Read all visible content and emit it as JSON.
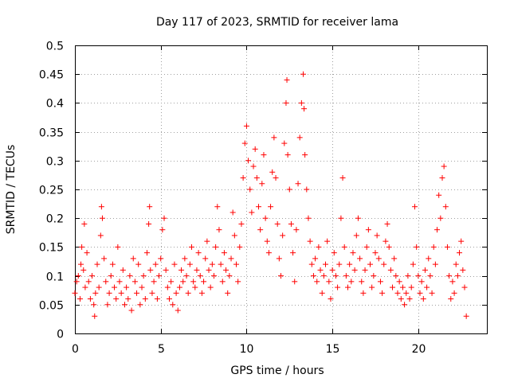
{
  "chart_data": {
    "type": "scatter",
    "title": "Day 117 of 2023, SRMTID for receiver lama",
    "xlabel": "GPS time / hours",
    "ylabel": "SRMTID / TECUs",
    "xlim": [
      0,
      24
    ],
    "ylim": [
      0,
      0.5
    ],
    "x_ticks": [
      0,
      5,
      10,
      15,
      20
    ],
    "x_tick_labels": [
      "0",
      "5",
      "10",
      "15",
      "20"
    ],
    "y_ticks": [
      0,
      0.05,
      0.1,
      0.15,
      0.2,
      0.25,
      0.3,
      0.35,
      0.4,
      0.45,
      0.5
    ],
    "y_tick_labels": [
      "0",
      "0.05",
      "0.1",
      "0.15",
      "0.2",
      "0.25",
      "0.3",
      "0.35",
      "0.4",
      "0.45",
      "0.5"
    ],
    "grid": true,
    "marker": "+",
    "color": "#ff0000",
    "series": [
      {
        "name": "SRMTID",
        "points": [
          [
            0.0,
            0.07
          ],
          [
            0.1,
            0.09
          ],
          [
            0.2,
            0.1
          ],
          [
            0.3,
            0.06
          ],
          [
            0.35,
            0.12
          ],
          [
            0.4,
            0.15
          ],
          [
            0.5,
            0.11
          ],
          [
            0.55,
            0.19
          ],
          [
            0.6,
            0.08
          ],
          [
            0.7,
            0.14
          ],
          [
            0.8,
            0.09
          ],
          [
            0.9,
            0.06
          ],
          [
            1.0,
            0.1
          ],
          [
            1.1,
            0.05
          ],
          [
            1.15,
            0.03
          ],
          [
            1.2,
            0.07
          ],
          [
            1.3,
            0.12
          ],
          [
            1.4,
            0.08
          ],
          [
            1.5,
            0.17
          ],
          [
            1.55,
            0.22
          ],
          [
            1.6,
            0.2
          ],
          [
            1.7,
            0.13
          ],
          [
            1.8,
            0.09
          ],
          [
            1.9,
            0.05
          ],
          [
            2.0,
            0.07
          ],
          [
            2.1,
            0.1
          ],
          [
            2.2,
            0.12
          ],
          [
            2.3,
            0.08
          ],
          [
            2.4,
            0.06
          ],
          [
            2.5,
            0.15
          ],
          [
            2.6,
            0.09
          ],
          [
            2.7,
            0.07
          ],
          [
            2.8,
            0.11
          ],
          [
            2.9,
            0.05
          ],
          [
            3.0,
            0.08
          ],
          [
            3.1,
            0.06
          ],
          [
            3.2,
            0.1
          ],
          [
            3.3,
            0.04
          ],
          [
            3.4,
            0.13
          ],
          [
            3.5,
            0.09
          ],
          [
            3.6,
            0.07
          ],
          [
            3.7,
            0.12
          ],
          [
            3.8,
            0.05
          ],
          [
            3.9,
            0.08
          ],
          [
            4.0,
            0.1
          ],
          [
            4.1,
            0.06
          ],
          [
            4.2,
            0.14
          ],
          [
            4.3,
            0.19
          ],
          [
            4.35,
            0.22
          ],
          [
            4.4,
            0.11
          ],
          [
            4.5,
            0.07
          ],
          [
            4.6,
            0.09
          ],
          [
            4.7,
            0.12
          ],
          [
            4.8,
            0.06
          ],
          [
            4.9,
            0.1
          ],
          [
            5.0,
            0.13
          ],
          [
            5.1,
            0.18
          ],
          [
            5.2,
            0.2
          ],
          [
            5.3,
            0.11
          ],
          [
            5.4,
            0.08
          ],
          [
            5.5,
            0.06
          ],
          [
            5.6,
            0.09
          ],
          [
            5.7,
            0.05
          ],
          [
            5.8,
            0.12
          ],
          [
            5.9,
            0.07
          ],
          [
            6.0,
            0.04
          ],
          [
            6.1,
            0.08
          ],
          [
            6.2,
            0.11
          ],
          [
            6.3,
            0.09
          ],
          [
            6.4,
            0.13
          ],
          [
            6.5,
            0.1
          ],
          [
            6.6,
            0.07
          ],
          [
            6.7,
            0.12
          ],
          [
            6.8,
            0.15
          ],
          [
            6.9,
            0.09
          ],
          [
            7.0,
            0.08
          ],
          [
            7.1,
            0.11
          ],
          [
            7.2,
            0.14
          ],
          [
            7.3,
            0.1
          ],
          [
            7.4,
            0.07
          ],
          [
            7.5,
            0.09
          ],
          [
            7.6,
            0.13
          ],
          [
            7.7,
            0.16
          ],
          [
            7.8,
            0.11
          ],
          [
            7.9,
            0.08
          ],
          [
            8.0,
            0.12
          ],
          [
            8.1,
            0.1
          ],
          [
            8.2,
            0.15
          ],
          [
            8.3,
            0.22
          ],
          [
            8.4,
            0.18
          ],
          [
            8.5,
            0.12
          ],
          [
            8.6,
            0.09
          ],
          [
            8.7,
            0.14
          ],
          [
            8.8,
            0.11
          ],
          [
            8.9,
            0.07
          ],
          [
            9.0,
            0.1
          ],
          [
            9.1,
            0.13
          ],
          [
            9.2,
            0.21
          ],
          [
            9.3,
            0.17
          ],
          [
            9.4,
            0.12
          ],
          [
            9.5,
            0.09
          ],
          [
            9.6,
            0.15
          ],
          [
            9.7,
            0.19
          ],
          [
            9.8,
            0.27
          ],
          [
            9.9,
            0.33
          ],
          [
            10.0,
            0.36
          ],
          [
            10.1,
            0.3
          ],
          [
            10.2,
            0.25
          ],
          [
            10.3,
            0.21
          ],
          [
            10.4,
            0.29
          ],
          [
            10.5,
            0.32
          ],
          [
            10.6,
            0.27
          ],
          [
            10.7,
            0.22
          ],
          [
            10.8,
            0.18
          ],
          [
            10.9,
            0.26
          ],
          [
            11.0,
            0.31
          ],
          [
            11.1,
            0.2
          ],
          [
            11.2,
            0.16
          ],
          [
            11.3,
            0.14
          ],
          [
            11.4,
            0.22
          ],
          [
            11.5,
            0.28
          ],
          [
            11.6,
            0.34
          ],
          [
            11.7,
            0.27
          ],
          [
            11.8,
            0.19
          ],
          [
            11.9,
            0.13
          ],
          [
            12.0,
            0.1
          ],
          [
            12.1,
            0.17
          ],
          [
            12.2,
            0.33
          ],
          [
            12.3,
            0.4
          ],
          [
            12.35,
            0.44
          ],
          [
            12.4,
            0.31
          ],
          [
            12.5,
            0.25
          ],
          [
            12.6,
            0.19
          ],
          [
            12.7,
            0.14
          ],
          [
            12.8,
            0.09
          ],
          [
            12.9,
            0.18
          ],
          [
            13.0,
            0.26
          ],
          [
            13.1,
            0.34
          ],
          [
            13.2,
            0.4
          ],
          [
            13.3,
            0.45
          ],
          [
            13.35,
            0.39
          ],
          [
            13.4,
            0.31
          ],
          [
            13.5,
            0.25
          ],
          [
            13.6,
            0.2
          ],
          [
            13.7,
            0.16
          ],
          [
            13.8,
            0.12
          ],
          [
            13.9,
            0.1
          ],
          [
            14.0,
            0.13
          ],
          [
            14.1,
            0.09
          ],
          [
            14.2,
            0.15
          ],
          [
            14.3,
            0.11
          ],
          [
            14.4,
            0.07
          ],
          [
            14.5,
            0.1
          ],
          [
            14.6,
            0.12
          ],
          [
            14.7,
            0.16
          ],
          [
            14.8,
            0.09
          ],
          [
            14.9,
            0.06
          ],
          [
            15.0,
            0.11
          ],
          [
            15.1,
            0.14
          ],
          [
            15.2,
            0.1
          ],
          [
            15.3,
            0.08
          ],
          [
            15.4,
            0.12
          ],
          [
            15.5,
            0.2
          ],
          [
            15.6,
            0.27
          ],
          [
            15.7,
            0.15
          ],
          [
            15.8,
            0.1
          ],
          [
            15.9,
            0.08
          ],
          [
            16.0,
            0.12
          ],
          [
            16.1,
            0.09
          ],
          [
            16.2,
            0.14
          ],
          [
            16.3,
            0.11
          ],
          [
            16.4,
            0.17
          ],
          [
            16.5,
            0.2
          ],
          [
            16.6,
            0.13
          ],
          [
            16.7,
            0.09
          ],
          [
            16.8,
            0.07
          ],
          [
            16.9,
            0.11
          ],
          [
            17.0,
            0.15
          ],
          [
            17.1,
            0.18
          ],
          [
            17.2,
            0.12
          ],
          [
            17.3,
            0.08
          ],
          [
            17.4,
            0.1
          ],
          [
            17.5,
            0.14
          ],
          [
            17.6,
            0.17
          ],
          [
            17.7,
            0.13
          ],
          [
            17.8,
            0.09
          ],
          [
            17.9,
            0.07
          ],
          [
            18.0,
            0.12
          ],
          [
            18.1,
            0.16
          ],
          [
            18.2,
            0.19
          ],
          [
            18.3,
            0.15
          ],
          [
            18.4,
            0.11
          ],
          [
            18.5,
            0.08
          ],
          [
            18.6,
            0.13
          ],
          [
            18.7,
            0.1
          ],
          [
            18.8,
            0.07
          ],
          [
            18.9,
            0.09
          ],
          [
            19.0,
            0.06
          ],
          [
            19.1,
            0.08
          ],
          [
            19.2,
            0.05
          ],
          [
            19.3,
            0.07
          ],
          [
            19.4,
            0.1
          ],
          [
            19.5,
            0.06
          ],
          [
            19.6,
            0.08
          ],
          [
            19.7,
            0.12
          ],
          [
            19.8,
            0.22
          ],
          [
            19.9,
            0.15
          ],
          [
            20.0,
            0.1
          ],
          [
            20.1,
            0.07
          ],
          [
            20.2,
            0.09
          ],
          [
            20.3,
            0.06
          ],
          [
            20.4,
            0.11
          ],
          [
            20.5,
            0.08
          ],
          [
            20.6,
            0.13
          ],
          [
            20.7,
            0.1
          ],
          [
            20.8,
            0.07
          ],
          [
            20.9,
            0.15
          ],
          [
            21.0,
            0.12
          ],
          [
            21.1,
            0.18
          ],
          [
            21.2,
            0.24
          ],
          [
            21.3,
            0.2
          ],
          [
            21.4,
            0.27
          ],
          [
            21.5,
            0.29
          ],
          [
            21.6,
            0.22
          ],
          [
            21.7,
            0.15
          ],
          [
            21.8,
            0.1
          ],
          [
            21.9,
            0.06
          ],
          [
            22.0,
            0.09
          ],
          [
            22.1,
            0.07
          ],
          [
            22.2,
            0.12
          ],
          [
            22.3,
            0.1
          ],
          [
            22.4,
            0.14
          ],
          [
            22.5,
            0.16
          ],
          [
            22.6,
            0.11
          ],
          [
            22.7,
            0.08
          ],
          [
            22.8,
            0.03
          ]
        ]
      }
    ]
  }
}
